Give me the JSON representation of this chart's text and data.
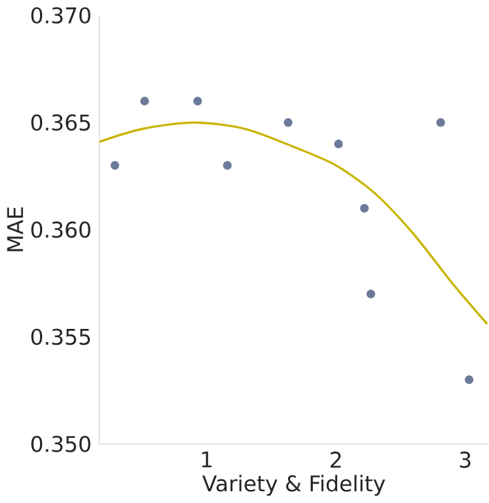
{
  "chart_data": {
    "type": "scatter",
    "xlabel": "Variety & Fidelity",
    "ylabel": "MAE",
    "xlim": [
      0.17,
      3.18
    ],
    "ylim": [
      0.35,
      0.37
    ],
    "xticks": [
      1,
      2,
      3
    ],
    "yticks": [
      {
        "value": 0.35,
        "label": "0.350"
      },
      {
        "value": 0.355,
        "label": "0.355"
      },
      {
        "value": 0.36,
        "label": "0.360"
      },
      {
        "value": 0.365,
        "label": "0.365"
      },
      {
        "value": 0.37,
        "label": "0.370"
      }
    ],
    "grid": false,
    "series": [
      {
        "marker": "circle",
        "color": "#6b7a99",
        "x": [
          0.29,
          0.52,
          0.93,
          1.16,
          1.63,
          2.02,
          2.22,
          2.27,
          2.81,
          3.03
        ],
        "values": [
          0.363,
          0.366,
          0.366,
          0.363,
          0.365,
          0.364,
          0.361,
          0.357,
          0.365,
          0.353
        ]
      },
      {
        "type": "line",
        "marker": "none",
        "color": "#c8b400",
        "x": [
          0.17,
          0.5,
          0.9,
          1.3,
          1.7,
          2.0,
          2.3,
          2.6,
          2.9,
          3.17
        ],
        "values": [
          0.3641,
          0.3647,
          0.365,
          0.3647,
          0.3638,
          0.363,
          0.3617,
          0.3598,
          0.3575,
          0.3556
        ]
      }
    ]
  }
}
